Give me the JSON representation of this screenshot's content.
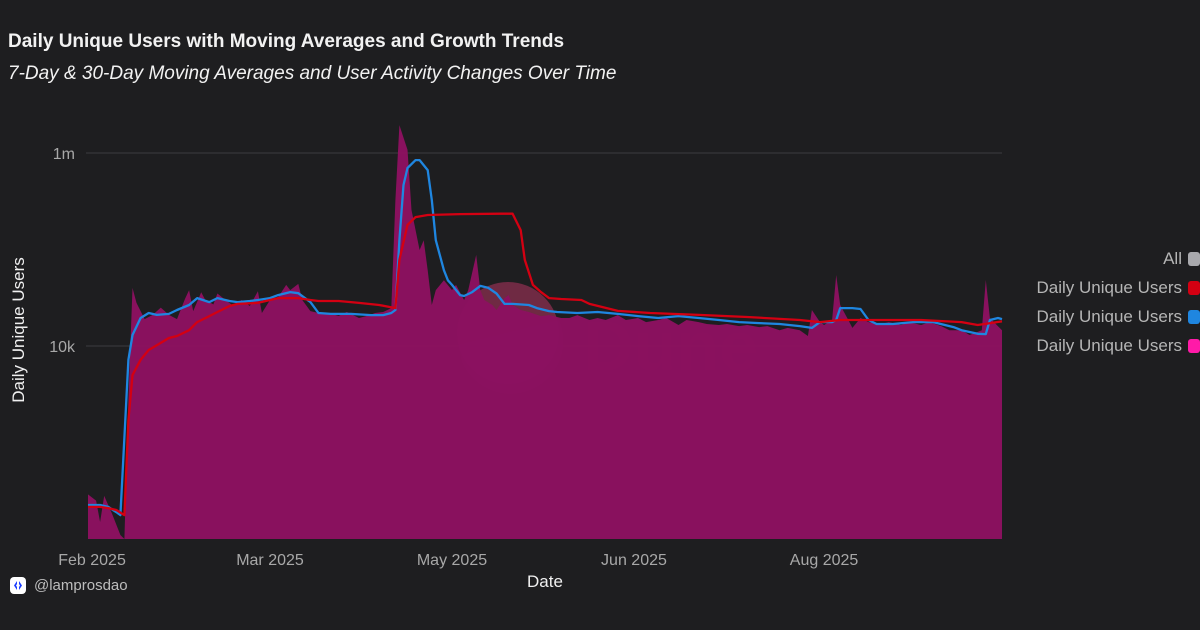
{
  "header": {
    "title": "Daily Unique Users with Moving Averages and Growth Trends",
    "subtitle": "7-Day & 30-Day Moving Averages and User Activity Changes Over Time"
  },
  "footer": {
    "handle": "@lamprosdao",
    "icon": "lampros-logo-icon"
  },
  "watermark": {
    "text": "Dune"
  },
  "legend": {
    "items": [
      {
        "label": "All",
        "color": "#a9a9ad"
      },
      {
        "label": "Daily Unique Users",
        "color": "#d40012"
      },
      {
        "label": "Daily Unique Users",
        "color": "#1f86e0"
      },
      {
        "label": "Daily Unique Users",
        "color": "#ff1aa8"
      }
    ]
  },
  "chart_data": {
    "type": "area",
    "xlabel": "Date",
    "ylabel": "Daily Unique Users",
    "yscale": "log",
    "ylim": [
      100,
      2000000
    ],
    "xlim": [
      "2025-01-31",
      "2025-09-14"
    ],
    "grid": true,
    "legend_position": "right",
    "y_ticks": [
      {
        "value": 1000000,
        "label": "1m"
      },
      {
        "value": 10000,
        "label": "10k"
      }
    ],
    "x_ticks": [
      {
        "date": "2025-02-01",
        "label": "Feb 2025"
      },
      {
        "date": "2025-03-17",
        "label": "Mar 2025"
      },
      {
        "date": "2025-05-01",
        "label": "May 2025"
      },
      {
        "date": "2025-06-15",
        "label": "Jun 2025"
      },
      {
        "date": "2025-08-01",
        "label": "Aug 2025"
      }
    ],
    "series": [
      {
        "kind": "area",
        "color": "#8c1160",
        "points": [
          [
            "2025-01-31",
            290
          ],
          [
            "2025-02-02",
            250
          ],
          [
            "2025-02-03",
            150
          ],
          [
            "2025-02-04",
            280
          ],
          [
            "2025-02-06",
            180
          ],
          [
            "2025-02-08",
            110
          ],
          [
            "2025-02-09",
            100
          ],
          [
            "2025-02-10",
            2800
          ],
          [
            "2025-02-11",
            40000
          ],
          [
            "2025-02-12",
            28000
          ],
          [
            "2025-02-14",
            19000
          ],
          [
            "2025-02-16",
            21000
          ],
          [
            "2025-02-18",
            25000
          ],
          [
            "2025-02-20",
            21000
          ],
          [
            "2025-02-22",
            19000
          ],
          [
            "2025-02-24",
            31000
          ],
          [
            "2025-02-25",
            38000
          ],
          [
            "2025-02-26",
            23000
          ],
          [
            "2025-02-28",
            36000
          ],
          [
            "2025-03-01",
            30000
          ],
          [
            "2025-03-03",
            27000
          ],
          [
            "2025-03-04",
            35000
          ],
          [
            "2025-03-06",
            30000
          ],
          [
            "2025-03-08",
            26000
          ],
          [
            "2025-03-10",
            30000
          ],
          [
            "2025-03-12",
            26000
          ],
          [
            "2025-03-14",
            37000
          ],
          [
            "2025-03-15",
            22000
          ],
          [
            "2025-03-17",
            30000
          ],
          [
            "2025-03-19",
            32000
          ],
          [
            "2025-03-21",
            43000
          ],
          [
            "2025-03-22",
            38000
          ],
          [
            "2025-03-24",
            44000
          ],
          [
            "2025-03-25",
            30000
          ],
          [
            "2025-03-27",
            23000
          ],
          [
            "2025-03-29",
            22000
          ],
          [
            "2025-04-01",
            21500
          ],
          [
            "2025-04-03",
            20500
          ],
          [
            "2025-04-05",
            22500
          ],
          [
            "2025-04-08",
            19500
          ],
          [
            "2025-04-10",
            20500
          ],
          [
            "2025-04-12",
            22000
          ],
          [
            "2025-04-14",
            22500
          ],
          [
            "2025-04-16",
            24700
          ],
          [
            "2025-04-17",
            326000
          ],
          [
            "2025-04-18",
            1950000
          ],
          [
            "2025-04-20",
            1080000
          ],
          [
            "2025-04-21",
            257000
          ],
          [
            "2025-04-23",
            99000
          ],
          [
            "2025-04-24",
            125000
          ],
          [
            "2025-04-25",
            61000
          ],
          [
            "2025-04-26",
            26600
          ],
          [
            "2025-04-27",
            38000
          ],
          [
            "2025-04-29",
            48000
          ],
          [
            "2025-05-01",
            38000
          ],
          [
            "2025-05-02",
            43000
          ],
          [
            "2025-05-04",
            30000
          ],
          [
            "2025-05-05",
            38000
          ],
          [
            "2025-05-07",
            88000
          ],
          [
            "2025-05-08",
            38000
          ],
          [
            "2025-05-09",
            30000
          ],
          [
            "2025-05-11",
            26600
          ],
          [
            "2025-05-12",
            23600
          ],
          [
            "2025-05-14",
            31400
          ],
          [
            "2025-05-15",
            33700
          ],
          [
            "2025-05-16",
            26600
          ],
          [
            "2025-05-18",
            23600
          ],
          [
            "2025-05-20",
            22500
          ],
          [
            "2025-05-23",
            20400
          ],
          [
            "2025-05-25",
            20900
          ],
          [
            "2025-05-28",
            19500
          ],
          [
            "2025-05-30",
            19500
          ],
          [
            "2025-06-01",
            20900
          ],
          [
            "2025-06-04",
            18600
          ],
          [
            "2025-06-06",
            19500
          ],
          [
            "2025-06-08",
            18600
          ],
          [
            "2025-06-11",
            20900
          ],
          [
            "2025-06-13",
            18600
          ],
          [
            "2025-06-16",
            19500
          ],
          [
            "2025-06-18",
            17700
          ],
          [
            "2025-06-21",
            18600
          ],
          [
            "2025-06-23",
            19500
          ],
          [
            "2025-06-26",
            16500
          ],
          [
            "2025-06-28",
            18600
          ],
          [
            "2025-07-01",
            17700
          ],
          [
            "2025-07-03",
            16900
          ],
          [
            "2025-07-06",
            16500
          ],
          [
            "2025-07-08",
            16900
          ],
          [
            "2025-07-11",
            16100
          ],
          [
            "2025-07-13",
            16500
          ],
          [
            "2025-07-16",
            15700
          ],
          [
            "2025-07-18",
            16100
          ],
          [
            "2025-07-21",
            14600
          ],
          [
            "2025-07-23",
            15400
          ],
          [
            "2025-07-26",
            14600
          ],
          [
            "2025-07-28",
            12700
          ],
          [
            "2025-07-29",
            23600
          ],
          [
            "2025-07-31",
            17700
          ],
          [
            "2025-08-01",
            16500
          ],
          [
            "2025-08-03",
            18600
          ],
          [
            "2025-08-04",
            54400
          ],
          [
            "2025-08-05",
            26600
          ],
          [
            "2025-08-07",
            18600
          ],
          [
            "2025-08-08",
            15400
          ],
          [
            "2025-08-10",
            19500
          ],
          [
            "2025-08-12",
            17700
          ],
          [
            "2025-08-15",
            16900
          ],
          [
            "2025-08-17",
            17700
          ],
          [
            "2025-08-20",
            16500
          ],
          [
            "2025-08-22",
            17700
          ],
          [
            "2025-08-25",
            16500
          ],
          [
            "2025-08-27",
            17700
          ],
          [
            "2025-08-30",
            16100
          ],
          [
            "2025-09-01",
            14600
          ],
          [
            "2025-09-04",
            14600
          ],
          [
            "2025-09-06",
            13000
          ],
          [
            "2025-09-09",
            14600
          ],
          [
            "2025-09-10",
            48300
          ],
          [
            "2025-09-11",
            19500
          ],
          [
            "2025-09-12",
            17700
          ],
          [
            "2025-09-14",
            14600
          ]
        ]
      },
      {
        "kind": "line",
        "color": "#1f86e0",
        "points": [
          [
            "2025-01-31",
            225
          ],
          [
            "2025-02-03",
            225
          ],
          [
            "2025-02-05",
            215
          ],
          [
            "2025-02-07",
            190
          ],
          [
            "2025-02-08",
            177
          ],
          [
            "2025-02-10",
            7200
          ],
          [
            "2025-02-11",
            13000
          ],
          [
            "2025-02-13",
            19500
          ],
          [
            "2025-02-15",
            22000
          ],
          [
            "2025-02-17",
            21000
          ],
          [
            "2025-02-20",
            21500
          ],
          [
            "2025-02-22",
            23600
          ],
          [
            "2025-02-25",
            26600
          ],
          [
            "2025-02-27",
            31400
          ],
          [
            "2025-03-02",
            28500
          ],
          [
            "2025-03-04",
            31400
          ],
          [
            "2025-03-07",
            29300
          ],
          [
            "2025-03-09",
            28500
          ],
          [
            "2025-03-12",
            29300
          ],
          [
            "2025-03-14",
            30000
          ],
          [
            "2025-03-17",
            31400
          ],
          [
            "2025-03-19",
            33700
          ],
          [
            "2025-03-22",
            36200
          ],
          [
            "2025-03-24",
            35300
          ],
          [
            "2025-03-27",
            28500
          ],
          [
            "2025-03-29",
            22000
          ],
          [
            "2025-04-01",
            21500
          ],
          [
            "2025-04-06",
            21500
          ],
          [
            "2025-04-11",
            20900
          ],
          [
            "2025-04-14",
            20900
          ],
          [
            "2025-04-16",
            22000
          ],
          [
            "2025-04-17",
            23600
          ],
          [
            "2025-04-18",
            125000
          ],
          [
            "2025-04-19",
            466000
          ],
          [
            "2025-04-20",
            700000
          ],
          [
            "2025-04-22",
            845000
          ],
          [
            "2025-04-23",
            845000
          ],
          [
            "2025-04-25",
            665000
          ],
          [
            "2025-04-26",
            326000
          ],
          [
            "2025-04-27",
            125000
          ],
          [
            "2025-04-29",
            61000
          ],
          [
            "2025-04-30",
            48000
          ],
          [
            "2025-05-01",
            43000
          ],
          [
            "2025-05-03",
            33700
          ],
          [
            "2025-05-04",
            33000
          ],
          [
            "2025-05-06",
            36200
          ],
          [
            "2025-05-08",
            42000
          ],
          [
            "2025-05-10",
            40000
          ],
          [
            "2025-05-12",
            35000
          ],
          [
            "2025-05-14",
            27300
          ],
          [
            "2025-05-16",
            27300
          ],
          [
            "2025-05-20",
            26600
          ],
          [
            "2025-05-22",
            24700
          ],
          [
            "2025-05-25",
            23000
          ],
          [
            "2025-05-27",
            22500
          ],
          [
            "2025-06-01",
            22000
          ],
          [
            "2025-06-06",
            22500
          ],
          [
            "2025-06-11",
            21500
          ],
          [
            "2025-06-16",
            20400
          ],
          [
            "2025-06-21",
            19500
          ],
          [
            "2025-06-26",
            20400
          ],
          [
            "2025-07-01",
            19500
          ],
          [
            "2025-07-06",
            18600
          ],
          [
            "2025-07-11",
            17700
          ],
          [
            "2025-07-16",
            17300
          ],
          [
            "2025-07-21",
            16900
          ],
          [
            "2025-07-26",
            16100
          ],
          [
            "2025-07-29",
            15400
          ],
          [
            "2025-07-31",
            17700
          ],
          [
            "2025-08-03",
            17700
          ],
          [
            "2025-08-04",
            18600
          ],
          [
            "2025-08-05",
            24700
          ],
          [
            "2025-08-08",
            24700
          ],
          [
            "2025-08-10",
            24200
          ],
          [
            "2025-08-12",
            18600
          ],
          [
            "2025-08-14",
            16900
          ],
          [
            "2025-08-18",
            16900
          ],
          [
            "2025-08-23",
            17700
          ],
          [
            "2025-08-28",
            17700
          ],
          [
            "2025-09-02",
            15700
          ],
          [
            "2025-09-04",
            14600
          ],
          [
            "2025-09-08",
            13400
          ],
          [
            "2025-09-10",
            13300
          ],
          [
            "2025-09-11",
            18600
          ],
          [
            "2025-09-13",
            19500
          ],
          [
            "2025-09-14",
            19000
          ]
        ]
      },
      {
        "kind": "line",
        "color": "#d40012",
        "points": [
          [
            "2025-01-31",
            215
          ],
          [
            "2025-02-03",
            215
          ],
          [
            "2025-02-05",
            209
          ],
          [
            "2025-02-07",
            200
          ],
          [
            "2025-02-09",
            177
          ],
          [
            "2025-02-10",
            1700
          ],
          [
            "2025-02-11",
            5000
          ],
          [
            "2025-02-13",
            7200
          ],
          [
            "2025-02-15",
            9100
          ],
          [
            "2025-02-17",
            10200
          ],
          [
            "2025-02-20",
            12100
          ],
          [
            "2025-02-22",
            12700
          ],
          [
            "2025-02-25",
            14600
          ],
          [
            "2025-02-27",
            17700
          ],
          [
            "2025-03-02",
            20400
          ],
          [
            "2025-03-04",
            22500
          ],
          [
            "2025-03-07",
            26000
          ],
          [
            "2025-03-09",
            27300
          ],
          [
            "2025-03-14",
            28000
          ],
          [
            "2025-03-17",
            30000
          ],
          [
            "2025-03-19",
            31400
          ],
          [
            "2025-03-24",
            31400
          ],
          [
            "2025-03-27",
            30000
          ],
          [
            "2025-03-29",
            29300
          ],
          [
            "2025-04-03",
            29300
          ],
          [
            "2025-04-08",
            28000
          ],
          [
            "2025-04-13",
            26600
          ],
          [
            "2025-04-17",
            24700
          ],
          [
            "2025-04-18",
            78000
          ],
          [
            "2025-04-20",
            180000
          ],
          [
            "2025-04-22",
            217000
          ],
          [
            "2025-04-25",
            228000
          ],
          [
            "2025-05-03",
            233000
          ],
          [
            "2025-05-13",
            235000
          ],
          [
            "2025-05-16",
            235000
          ],
          [
            "2025-05-18",
            159000
          ],
          [
            "2025-05-19",
            78000
          ],
          [
            "2025-05-21",
            43000
          ],
          [
            "2025-05-23",
            36200
          ],
          [
            "2025-05-25",
            31400
          ],
          [
            "2025-05-28",
            30700
          ],
          [
            "2025-06-02",
            30000
          ],
          [
            "2025-06-04",
            27300
          ],
          [
            "2025-06-11",
            23100
          ],
          [
            "2025-06-19",
            22000
          ],
          [
            "2025-07-01",
            21000
          ],
          [
            "2025-07-13",
            20000
          ],
          [
            "2025-07-26",
            18600
          ],
          [
            "2025-07-31",
            17700
          ],
          [
            "2025-08-05",
            18600
          ],
          [
            "2025-08-15",
            18600
          ],
          [
            "2025-08-25",
            18600
          ],
          [
            "2025-09-04",
            17700
          ],
          [
            "2025-09-08",
            16500
          ],
          [
            "2025-09-14",
            18000
          ]
        ]
      }
    ]
  }
}
